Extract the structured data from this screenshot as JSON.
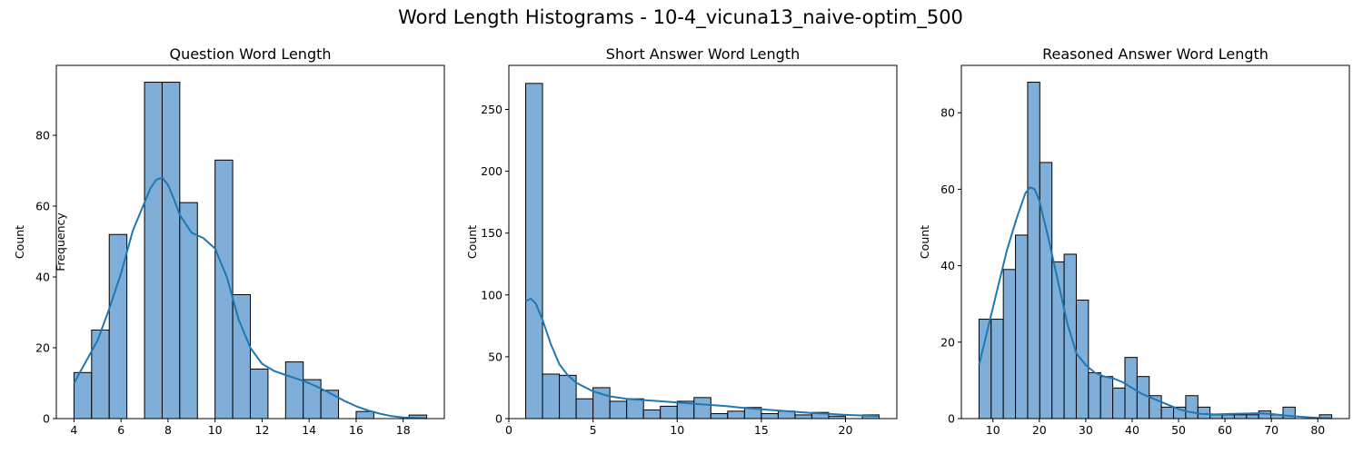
{
  "suptitle": "Word Length Histograms - 10-4_vicuna13_naive-optim_500",
  "style": {
    "bar_fill": "#7FAFD8",
    "bar_edge": "#000000",
    "kde_color": "#1F77B4"
  },
  "chart_data": [
    {
      "type": "bar",
      "title": "Question Word Length",
      "ylabel": "Count",
      "ylabel_overlay": "Frequency",
      "xlim": [
        3.25,
        19.75
      ],
      "ylim": [
        0,
        99.75
      ],
      "xticks": [
        4,
        6,
        8,
        10,
        12,
        14,
        16,
        18
      ],
      "yticks": [
        0,
        20,
        40,
        60,
        80
      ],
      "grid": false,
      "bin_edges": [
        4,
        4.75,
        5.5,
        6.25,
        7,
        7.75,
        8.5,
        9.25,
        10,
        10.75,
        11.5,
        12.25,
        13,
        13.75,
        14.5,
        15.25,
        16,
        16.75,
        17.5,
        18.25,
        19
      ],
      "values": [
        13,
        25,
        52,
        0,
        95,
        95,
        61,
        0,
        73,
        35,
        14,
        0,
        16,
        11,
        8,
        0,
        2,
        0,
        0,
        1
      ],
      "kde": {
        "x": [
          4,
          4.5,
          5,
          5.5,
          6,
          6.5,
          7,
          7.25,
          7.5,
          7.75,
          8,
          8.25,
          8.5,
          9,
          9.5,
          10,
          10.5,
          11,
          11.5,
          12,
          12.5,
          13,
          13.5,
          14,
          14.5,
          15,
          15.5,
          16,
          16.5,
          17,
          17.5,
          18,
          18.5,
          19
        ],
        "y": [
          10,
          16,
          22,
          31,
          41,
          53,
          61,
          65,
          67.5,
          68,
          66,
          62,
          57.5,
          52.5,
          51,
          48,
          40,
          28,
          20,
          15.5,
          13.5,
          12.3,
          11.2,
          10,
          8.5,
          6.8,
          5,
          3.5,
          2.3,
          1.4,
          0.7,
          0.3,
          0.2,
          0.1
        ]
      }
    },
    {
      "type": "bar",
      "title": "Short Answer Word Length",
      "ylabel": "Count",
      "xlim": [
        0,
        23.05
      ],
      "ylim": [
        0,
        285.6
      ],
      "xticks": [
        0,
        5,
        10,
        15,
        20
      ],
      "yticks": [
        0,
        50,
        100,
        150,
        200,
        250
      ],
      "grid": false,
      "bin_edges": [
        1,
        2,
        3,
        4,
        5,
        6,
        7,
        8,
        9,
        10,
        11,
        12,
        13,
        14,
        15,
        16,
        17,
        18,
        19,
        20,
        21,
        22
      ],
      "values": [
        271,
        36,
        35,
        16,
        25,
        14,
        16,
        7,
        10,
        14,
        17,
        4,
        6,
        9,
        4,
        6,
        3,
        5,
        2,
        0,
        3
      ],
      "kde": {
        "x": [
          1,
          1.3,
          1.6,
          2,
          2.5,
          3,
          3.5,
          4,
          5,
          6,
          7,
          8,
          9,
          10,
          11,
          12,
          13,
          14,
          15,
          16,
          17,
          18,
          19,
          20,
          21,
          22
        ],
        "y": [
          95,
          97,
          93,
          80,
          60,
          44,
          35,
          29,
          22,
          18,
          16,
          15,
          14,
          13,
          12,
          11,
          10,
          8.5,
          7.5,
          6.5,
          5.5,
          4.5,
          3.8,
          3.0,
          2.5,
          2
        ]
      }
    },
    {
      "type": "bar",
      "title": "Reasoned Answer Word Length",
      "ylabel": "Count",
      "xlim": [
        3.2,
        86.8
      ],
      "ylim": [
        0,
        92.4
      ],
      "xticks": [
        10,
        20,
        30,
        40,
        50,
        60,
        70,
        80
      ],
      "yticks": [
        0,
        20,
        40,
        60,
        80
      ],
      "grid": false,
      "bin_edges": [
        7,
        9.62,
        12.24,
        14.86,
        17.48,
        20.1,
        22.72,
        25.34,
        27.96,
        30.58,
        33.2,
        35.82,
        38.44,
        41.06,
        43.68,
        46.3,
        48.92,
        51.54,
        54.16,
        56.78,
        59.4,
        62.02,
        64.64,
        67.26,
        69.88,
        72.5,
        75.12,
        77.74,
        80.36,
        83
      ],
      "values": [
        26,
        26,
        39,
        48,
        88,
        67,
        41,
        43,
        31,
        12,
        11,
        8,
        16,
        11,
        6,
        3,
        3,
        6,
        3,
        1,
        1,
        1,
        1,
        2,
        1,
        3,
        0,
        0,
        1
      ],
      "kde": {
        "x": [
          7,
          9,
          11,
          13,
          15,
          17,
          18,
          19,
          20,
          22,
          24,
          26,
          28,
          30,
          32,
          34,
          36,
          38,
          40,
          42,
          44,
          46,
          48,
          50,
          52,
          55,
          58,
          61,
          64,
          67,
          70,
          73,
          76,
          80,
          83
        ],
        "y": [
          14,
          24,
          34,
          44,
          52,
          59,
          60.5,
          60,
          57,
          47,
          36,
          25,
          17,
          14,
          12,
          11,
          10.5,
          9.5,
          8,
          6.5,
          5.5,
          4.5,
          3.5,
          2.5,
          1.8,
          1.2,
          1.1,
          1.2,
          1.3,
          1.4,
          1.2,
          0.8,
          0.5,
          0.2,
          0.1
        ]
      }
    }
  ]
}
